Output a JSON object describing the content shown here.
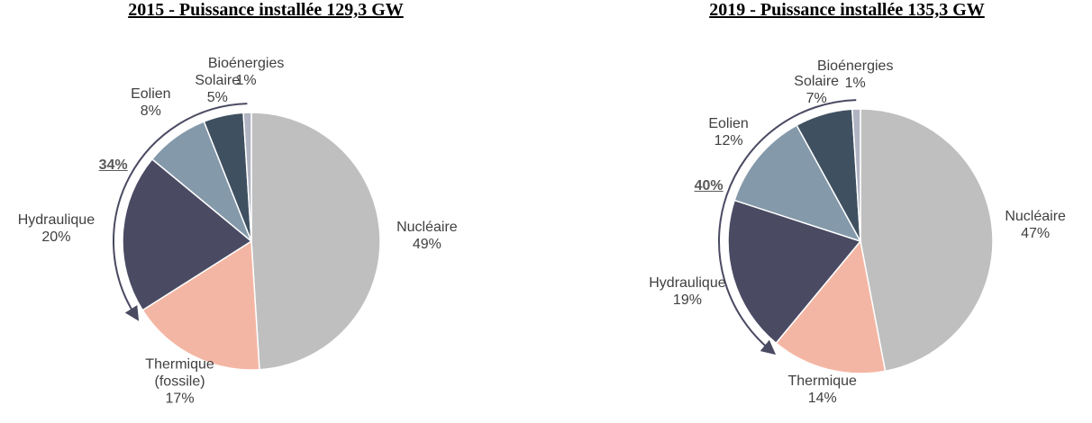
{
  "chart_data": [
    {
      "type": "pie",
      "title": "2015 - Puissance installée 129,3 GW",
      "categories": [
        "Nucléaire",
        "Thermique (fossile)",
        "Hydraulique",
        "Eolien",
        "Solaire",
        "Bioénergies"
      ],
      "values": [
        49,
        17,
        20,
        8,
        5,
        1
      ],
      "value_labels": [
        "49%",
        "17%",
        "20%",
        "8%",
        "5%",
        "1%"
      ],
      "colors": [
        "#bfbfbf",
        "#f4b6a4",
        "#4a4a63",
        "#8499aa",
        "#3f5060",
        "#b0b3c2"
      ],
      "annotation": "34%"
    },
    {
      "type": "pie",
      "title": "2019 - Puissance installée 135,3 GW",
      "categories": [
        "Nucléaire",
        "Thermique",
        "Hydraulique",
        "Eolien",
        "Solaire",
        "Bioénergies"
      ],
      "values": [
        47,
        14,
        19,
        12,
        7,
        1
      ],
      "value_labels": [
        "47%",
        "14%",
        "19%",
        "12%",
        "7%",
        "1%"
      ],
      "colors": [
        "#bfbfbf",
        "#f4b6a4",
        "#4a4a63",
        "#8499aa",
        "#3f5060",
        "#b0b3c2"
      ],
      "annotation": "40%"
    }
  ]
}
